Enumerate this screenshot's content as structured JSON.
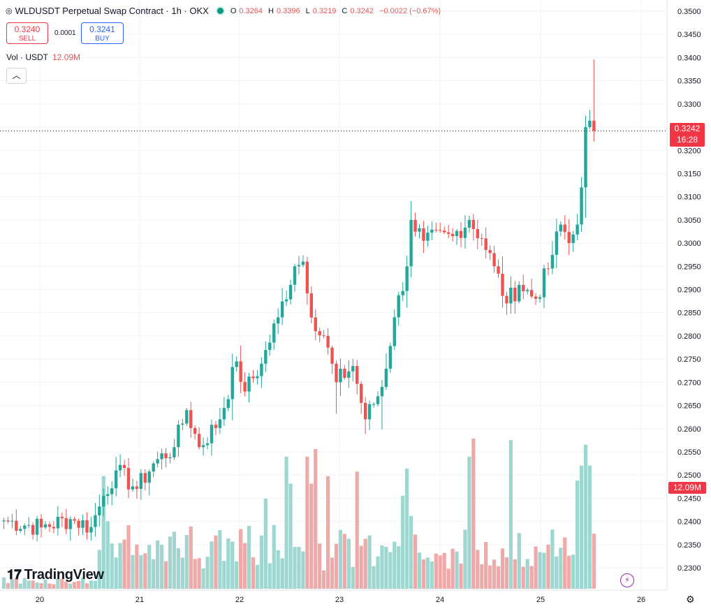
{
  "header": {
    "symbol": "WLDUSDT Perpetual Swap Contract · 1h · OKX",
    "open_key": "O",
    "open": "0.3264",
    "high_key": "H",
    "high": "0.3396",
    "low_key": "L",
    "low": "0.3219",
    "close_key": "C",
    "close": "0.3242",
    "change": "−0.0022 (−0.67%)"
  },
  "trade": {
    "sell_price": "0.3240",
    "sell_label": "SELL",
    "spread": "0.0001",
    "buy_price": "0.3241",
    "buy_label": "BUY"
  },
  "volume": {
    "label": "Vol · USDT",
    "value": "12.09M"
  },
  "collapse_icon": "chevron-up-icon",
  "brand": {
    "name": "TradingView",
    "logo_icon": "tv-logo-icon"
  },
  "price_label": {
    "price": "0.3242",
    "countdown": "16:28"
  },
  "colors": {
    "up": "#26a69a",
    "down": "#ef5350",
    "up_vol": "#9fd6cf",
    "down_vol": "#f0a9a9"
  },
  "chart_data": {
    "type": "candlestick",
    "x_ticks": [
      "20",
      "21",
      "22",
      "23",
      "24",
      "25",
      "26"
    ],
    "y_ticks": [
      "0.3500",
      "0.3450",
      "0.3400",
      "0.3350",
      "0.3300",
      "0.3250",
      "0.3200",
      "0.3150",
      "0.3100",
      "0.3050",
      "0.3000",
      "0.2950",
      "0.2900",
      "0.2850",
      "0.2800",
      "0.2750",
      "0.2700",
      "0.2650",
      "0.2600",
      "0.2550",
      "0.2500",
      "0.2450",
      "0.2400",
      "0.2350",
      "0.2300"
    ],
    "ylim": [
      0.2275,
      0.351
    ],
    "last_price": 0.3242,
    "volume_label": "12.09M",
    "anchors": [
      {
        "t": 0,
        "p": 0.2402
      },
      {
        "t": 9,
        "p": 0.2387
      },
      {
        "t": 16,
        "p": 0.2405
      },
      {
        "t": 21,
        "p": 0.2388
      },
      {
        "t": 24,
        "p": 0.2455
      },
      {
        "t": 27,
        "p": 0.251
      },
      {
        "t": 32,
        "p": 0.247
      },
      {
        "t": 36,
        "p": 0.2525
      },
      {
        "t": 41,
        "p": 0.256
      },
      {
        "t": 44,
        "p": 0.264
      },
      {
        "t": 47,
        "p": 0.256
      },
      {
        "t": 52,
        "p": 0.262
      },
      {
        "t": 56,
        "p": 0.2745
      },
      {
        "t": 58,
        "p": 0.268
      },
      {
        "t": 62,
        "p": 0.274
      },
      {
        "t": 66,
        "p": 0.284
      },
      {
        "t": 70,
        "p": 0.295
      },
      {
        "t": 72,
        "p": 0.296
      },
      {
        "t": 75,
        "p": 0.281
      },
      {
        "t": 77,
        "p": 0.28
      },
      {
        "t": 80,
        "p": 0.27
      },
      {
        "t": 84,
        "p": 0.2735
      },
      {
        "t": 87,
        "p": 0.262
      },
      {
        "t": 91,
        "p": 0.269
      },
      {
        "t": 94,
        "p": 0.284
      },
      {
        "t": 97,
        "p": 0.295
      },
      {
        "t": 98,
        "p": 0.305
      },
      {
        "t": 101,
        "p": 0.3005
      },
      {
        "t": 108,
        "p": 0.3015
      },
      {
        "t": 112,
        "p": 0.305
      },
      {
        "t": 115,
        "p": 0.301
      },
      {
        "t": 118,
        "p": 0.295
      },
      {
        "t": 121,
        "p": 0.287
      },
      {
        "t": 124,
        "p": 0.291
      },
      {
        "t": 128,
        "p": 0.288
      },
      {
        "t": 131,
        "p": 0.2945
      },
      {
        "t": 134,
        "p": 0.304
      },
      {
        "t": 136,
        "p": 0.3
      },
      {
        "t": 138,
        "p": 0.304
      },
      {
        "t": 139,
        "p": 0.312
      },
      {
        "t": 140,
        "p": 0.325
      },
      {
        "t": 141,
        "p": 0.3264
      },
      {
        "t": 142,
        "p": 0.3242
      }
    ],
    "volume_spikes": [
      {
        "t": 24,
        "v": 0.75
      },
      {
        "t": 25,
        "v": 0.45
      },
      {
        "t": 41,
        "v": 0.38
      },
      {
        "t": 63,
        "v": 0.6
      },
      {
        "t": 68,
        "v": 0.88
      },
      {
        "t": 69,
        "v": 0.7
      },
      {
        "t": 73,
        "v": 0.88
      },
      {
        "t": 74,
        "v": 0.7
      },
      {
        "t": 75,
        "v": 0.93
      },
      {
        "t": 78,
        "v": 0.75
      },
      {
        "t": 85,
        "v": 0.78
      },
      {
        "t": 96,
        "v": 0.62
      },
      {
        "t": 96.5,
        "v": 0.8
      },
      {
        "t": 112,
        "v": 0.88
      },
      {
        "t": 113,
        "v": 1.0
      },
      {
        "t": 122,
        "v": 0.99
      },
      {
        "t": 138,
        "v": 0.72
      },
      {
        "t": 139,
        "v": 0.82
      },
      {
        "t": 140,
        "v": 0.96
      },
      {
        "t": 141,
        "v": 0.82
      }
    ]
  }
}
